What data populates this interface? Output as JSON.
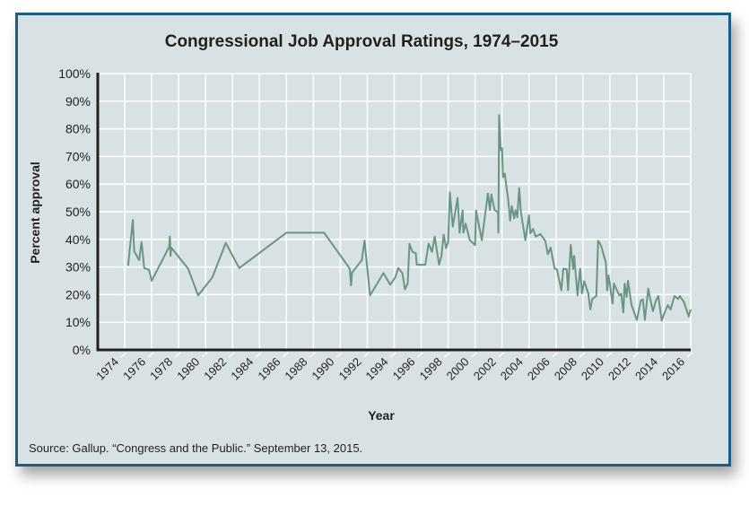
{
  "colors": {
    "line": "#6a9585",
    "background": "#d8e2e5",
    "border": "#1b5d84",
    "grid": "#ffffff",
    "axis": "#231f20"
  },
  "chart_data": {
    "type": "line",
    "title": "Congressional Job Approval Ratings, 1974–2015",
    "xlabel": "Year",
    "ylabel": "Percent approval",
    "source": "Source: Gallup. “Congress and the Public.” September 13, 2015.",
    "xlim": [
      1972,
      2016
    ],
    "ylim": [
      0,
      100
    ],
    "grid": true,
    "legend": "none",
    "x_ticks": [
      "1974",
      "1976",
      "1978",
      "1980",
      "1982",
      "1984",
      "1986",
      "1988",
      "1990",
      "1992",
      "1994",
      "1996",
      "1998",
      "2000",
      "2002",
      "2004",
      "2006",
      "2008",
      "2010",
      "2012",
      "2014",
      "2016"
    ],
    "y_ticks": [
      "0%",
      "10%",
      "20%",
      "30%",
      "40%",
      "50%",
      "60%",
      "70%",
      "80%",
      "90%",
      "100%"
    ],
    "series": [
      {
        "x": [
          1974.25,
          1974.6,
          1974.7,
          1975.07,
          1975.25,
          1975.45,
          1975.8,
          1976.0,
          1977.3,
          1977.35,
          1977.4,
          1977.45,
          1978.7,
          1979.45,
          1980.5,
          1981.5,
          1982.5,
          1986.0,
          1988.8,
          1990.7,
          1990.8,
          1990.87,
          1991.6,
          1991.8,
          1992.2,
          1993.2,
          1993.7,
          1994.07,
          1994.3,
          1994.6,
          1994.8,
          1995.0,
          1995.13,
          1995.35,
          1995.6,
          1995.67,
          1996.3,
          1996.55,
          1996.8,
          1997.0,
          1997.13,
          1997.33,
          1997.5,
          1997.67,
          1997.85,
          1998.0,
          1998.13,
          1998.35,
          1998.7,
          1998.85,
          1999.07,
          1999.13,
          1999.3,
          1999.6,
          2000.0,
          2000.07,
          2000.5,
          2000.95,
          2001.1,
          2001.2,
          2001.45,
          2001.7,
          2001.73,
          2001.78,
          2001.9,
          2002.0,
          2002.07,
          2002.2,
          2002.47,
          2002.6,
          2002.73,
          2002.9,
          2003.0,
          2003.13,
          2003.27,
          2003.4,
          2003.73,
          2004.0,
          2004.1,
          2004.3,
          2004.5,
          2004.85,
          2005.2,
          2005.4,
          2005.6,
          2005.9,
          2006.07,
          2006.4,
          2006.55,
          2006.8,
          2006.9,
          2007.1,
          2007.27,
          2007.35,
          2007.6,
          2007.8,
          2007.93,
          2008.1,
          2008.4,
          2008.55,
          2008.7,
          2009.0,
          2009.13,
          2009.35,
          2009.7,
          2009.8,
          2009.9,
          2010.2,
          2010.3,
          2010.7,
          2010.85,
          2011.0,
          2011.1,
          2011.25,
          2011.35,
          2011.6,
          2012.0,
          2012.3,
          2012.45,
          2012.6,
          2012.85,
          2013.0,
          2013.2,
          2013.4,
          2013.6,
          2013.85,
          2014.07,
          2014.3,
          2014.5,
          2014.8,
          2015.07,
          2015.2,
          2015.5,
          2015.85,
          2016.0
        ],
        "values": [
          30.5,
          47,
          35.7,
          32.5,
          39,
          29.6,
          29,
          25,
          37.3,
          41,
          34,
          37,
          29.4,
          19.7,
          26.2,
          38.7,
          29.6,
          42.4,
          42.4,
          29.4,
          23.3,
          28,
          32.5,
          39.6,
          19.7,
          27.8,
          23.6,
          26.2,
          29.6,
          27.8,
          21.9,
          24,
          38.4,
          35.5,
          35,
          30.8,
          30.8,
          38.4,
          35.5,
          41,
          37,
          30.8,
          34,
          41.7,
          36.8,
          39,
          57,
          44.6,
          55,
          42.4,
          50.5,
          42.4,
          45.7,
          39.8,
          37.9,
          50.5,
          39.7,
          56.6,
          50.6,
          56.3,
          50.6,
          49.8,
          42.4,
          85,
          72.3,
          73,
          62.5,
          63.8,
          54,
          46.8,
          52,
          47.6,
          50.6,
          48,
          58.6,
          49.8,
          39.7,
          48.7,
          42.2,
          43.8,
          41,
          41.9,
          39.5,
          34.6,
          37,
          29.4,
          29.2,
          21.6,
          29.4,
          29.2,
          21.6,
          38,
          29.2,
          34,
          19.7,
          29.4,
          20.5,
          24.9,
          20.5,
          14.6,
          18.4,
          19.5,
          39.5,
          37.7,
          31.6,
          21.6,
          27,
          16.8,
          24,
          19.7,
          20.3,
          13.5,
          24,
          19.2,
          25,
          16.4,
          10.8,
          17.9,
          18.2,
          10.8,
          22.2,
          18.4,
          14,
          17.5,
          19.5,
          10.6,
          13.5,
          16.2,
          14.6,
          19.5,
          18.4,
          19.5,
          17.3,
          12.1,
          14.6
        ]
      }
    ]
  }
}
